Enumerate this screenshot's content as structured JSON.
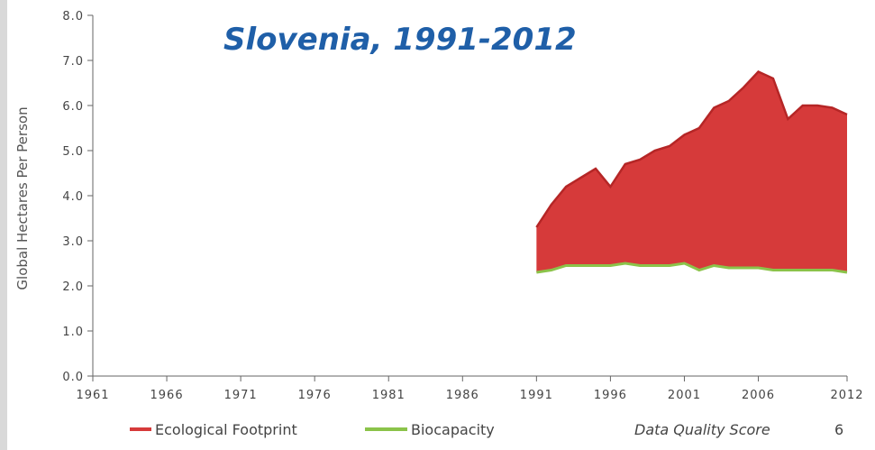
{
  "chart_data": {
    "type": "area",
    "title": "Slovenia, 1991-2012",
    "ylabel": "Global Hectares Per Person",
    "xlabel": "",
    "xlim": [
      1961,
      2012
    ],
    "ylim": [
      0,
      8
    ],
    "y_ticks": [
      "0.0",
      "1.0",
      "2.0",
      "3.0",
      "4.0",
      "5.0",
      "6.0",
      "7.0",
      "8.0"
    ],
    "x_ticks": [
      "1961",
      "1966",
      "1971",
      "1976",
      "1981",
      "1986",
      "1991",
      "1996",
      "2001",
      "2006",
      "2012"
    ],
    "x": [
      1991,
      1992,
      1993,
      1994,
      1995,
      1996,
      1997,
      1998,
      1999,
      2000,
      2001,
      2002,
      2003,
      2004,
      2005,
      2006,
      2007,
      2008,
      2009,
      2010,
      2011,
      2012
    ],
    "series": [
      {
        "name": "Ecological Footprint",
        "color": "#d63a3a",
        "values": [
          3.3,
          3.8,
          4.2,
          4.4,
          4.6,
          4.2,
          4.7,
          4.8,
          5.0,
          5.1,
          5.35,
          5.5,
          5.95,
          6.1,
          6.4,
          6.75,
          6.6,
          5.7,
          6.0,
          6.0,
          5.95,
          5.8
        ]
      },
      {
        "name": "Biocapacity",
        "color": "#8bc34a",
        "values": [
          2.3,
          2.35,
          2.45,
          2.45,
          2.45,
          2.45,
          2.5,
          2.45,
          2.45,
          2.45,
          2.5,
          2.35,
          2.45,
          2.4,
          2.4,
          2.4,
          2.35,
          2.35,
          2.35,
          2.35,
          2.35,
          2.3
        ]
      }
    ],
    "legend_position": "bottom-left",
    "annotation": "Data Quality Score",
    "annotation_value": "6"
  }
}
